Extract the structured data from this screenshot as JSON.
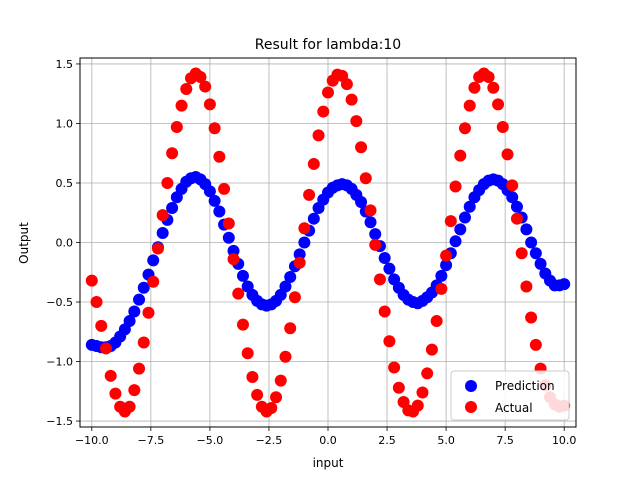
{
  "chart_data": {
    "type": "scatter",
    "title": "Result for lambda:10",
    "xlabel": "input",
    "ylabel": "Output",
    "xlim": [
      -10.5,
      10.5
    ],
    "ylim": [
      -1.55,
      1.55
    ],
    "grid": true,
    "legend_position": "lower right",
    "x_ticks": [
      -10,
      -7.5,
      -5,
      -2.5,
      0,
      2.5,
      5,
      7.5,
      10
    ],
    "x_tick_labels": [
      "−10.0",
      "−7.5",
      "−5.0",
      "−2.5",
      "0.0",
      "2.5",
      "5.0",
      "7.5",
      "10.0"
    ],
    "y_ticks": [
      -1.5,
      -1.0,
      -0.5,
      0.0,
      0.5,
      1.0,
      1.5
    ],
    "y_tick_labels": [
      "−1.5",
      "−1.0",
      "−0.5",
      "0.0",
      "0.5",
      "1.0",
      "1.5"
    ],
    "series": [
      {
        "name": "Prediction",
        "color": "#0000ff",
        "x": [
          -10.0,
          -9.8,
          -9.6,
          -9.4,
          -9.2,
          -9.0,
          -8.8,
          -8.6,
          -8.4,
          -8.2,
          -8.0,
          -7.8,
          -7.6,
          -7.4,
          -7.2,
          -7.0,
          -6.8,
          -6.6,
          -6.4,
          -6.2,
          -6.0,
          -5.8,
          -5.6,
          -5.4,
          -5.2,
          -5.0,
          -4.8,
          -4.6,
          -4.4,
          -4.2,
          -4.0,
          -3.8,
          -3.6,
          -3.4,
          -3.2,
          -3.0,
          -2.8,
          -2.6,
          -2.4,
          -2.2,
          -2.0,
          -1.8,
          -1.6,
          -1.4,
          -1.2,
          -1.0,
          -0.8,
          -0.6,
          -0.4,
          -0.2,
          0.0,
          0.2,
          0.4,
          0.6,
          0.8,
          1.0,
          1.2,
          1.4,
          1.6,
          1.8,
          2.0,
          2.2,
          2.4,
          2.6,
          2.8,
          3.0,
          3.2,
          3.4,
          3.6,
          3.8,
          4.0,
          4.2,
          4.4,
          4.6,
          4.8,
          5.0,
          5.2,
          5.4,
          5.6,
          5.8,
          6.0,
          6.2,
          6.4,
          6.6,
          6.8,
          7.0,
          7.2,
          7.4,
          7.6,
          7.8,
          8.0,
          8.2,
          8.4,
          8.6,
          8.8,
          9.0,
          9.2,
          9.4,
          9.6,
          9.8,
          10.0
        ],
        "y": [
          -0.86,
          -0.87,
          -0.88,
          -0.88,
          -0.87,
          -0.84,
          -0.79,
          -0.73,
          -0.66,
          -0.58,
          -0.48,
          -0.38,
          -0.27,
          -0.15,
          -0.04,
          0.08,
          0.19,
          0.29,
          0.38,
          0.45,
          0.51,
          0.54,
          0.55,
          0.53,
          0.49,
          0.43,
          0.35,
          0.26,
          0.15,
          0.04,
          -0.07,
          -0.18,
          -0.28,
          -0.37,
          -0.44,
          -0.49,
          -0.52,
          -0.53,
          -0.52,
          -0.49,
          -0.44,
          -0.37,
          -0.29,
          -0.2,
          -0.1,
          0.0,
          0.1,
          0.2,
          0.29,
          0.36,
          0.42,
          0.46,
          0.48,
          0.49,
          0.48,
          0.45,
          0.4,
          0.34,
          0.26,
          0.17,
          0.07,
          -0.03,
          -0.13,
          -0.22,
          -0.31,
          -0.38,
          -0.44,
          -0.48,
          -0.5,
          -0.51,
          -0.49,
          -0.46,
          -0.42,
          -0.36,
          -0.28,
          -0.19,
          -0.09,
          0.01,
          0.11,
          0.21,
          0.3,
          0.38,
          0.44,
          0.49,
          0.52,
          0.53,
          0.52,
          0.49,
          0.44,
          0.38,
          0.3,
          0.21,
          0.11,
          0.0,
          -0.09,
          -0.18,
          -0.26,
          -0.32,
          -0.36,
          -0.36,
          -0.35
        ]
      },
      {
        "name": "Actual",
        "color": "#ff0000",
        "x": [
          -10.0,
          -9.8,
          -9.6,
          -9.4,
          -9.2,
          -9.0,
          -8.8,
          -8.6,
          -8.4,
          -8.2,
          -8.0,
          -7.8,
          -7.6,
          -7.4,
          -7.2,
          -7.0,
          -6.8,
          -6.6,
          -6.4,
          -6.2,
          -6.0,
          -5.8,
          -5.6,
          -5.4,
          -5.2,
          -5.0,
          -4.8,
          -4.6,
          -4.4,
          -4.2,
          -4.0,
          -3.8,
          -3.6,
          -3.4,
          -3.2,
          -3.0,
          -2.8,
          -2.6,
          -2.4,
          -2.2,
          -2.0,
          -1.8,
          -1.6,
          -1.4,
          -1.2,
          -1.0,
          -0.8,
          -0.6,
          -0.4,
          -0.2,
          0.0,
          0.2,
          0.4,
          0.6,
          0.8,
          1.0,
          1.2,
          1.4,
          1.6,
          1.8,
          2.0,
          2.2,
          2.4,
          2.6,
          2.8,
          3.0,
          3.2,
          3.4,
          3.6,
          3.8,
          4.0,
          4.2,
          4.4,
          4.6,
          4.8,
          5.0,
          5.2,
          5.4,
          5.6,
          5.8,
          6.0,
          6.2,
          6.4,
          6.6,
          6.8,
          7.0,
          7.2,
          7.4,
          7.6,
          7.8,
          8.0,
          8.2,
          8.4,
          8.6,
          8.8,
          9.0,
          9.2,
          9.4,
          9.6,
          9.8,
          10.0
        ],
        "y": [
          -0.32,
          -0.5,
          -0.7,
          -0.89,
          -1.12,
          -1.27,
          -1.38,
          -1.42,
          -1.38,
          -1.24,
          -1.06,
          -0.84,
          -0.59,
          -0.33,
          -0.05,
          0.23,
          0.5,
          0.75,
          0.97,
          1.15,
          1.29,
          1.38,
          1.42,
          1.39,
          1.31,
          1.16,
          0.96,
          0.72,
          0.45,
          0.16,
          -0.14,
          -0.43,
          -0.69,
          -0.93,
          -1.13,
          -1.28,
          -1.38,
          -1.42,
          -1.39,
          -1.3,
          -1.16,
          -0.96,
          -0.72,
          -0.46,
          -0.17,
          0.12,
          0.4,
          0.66,
          0.9,
          1.1,
          1.26,
          1.36,
          1.41,
          1.4,
          1.33,
          1.2,
          1.02,
          0.8,
          0.54,
          0.27,
          -0.02,
          -0.31,
          -0.58,
          -0.83,
          -1.05,
          -1.22,
          -1.34,
          -1.41,
          -1.42,
          -1.37,
          -1.26,
          -1.1,
          -0.9,
          -0.66,
          -0.39,
          -0.11,
          0.18,
          0.47,
          0.73,
          0.96,
          1.15,
          1.3,
          1.39,
          1.42,
          1.39,
          1.3,
          1.16,
          0.97,
          0.74,
          0.48,
          0.2,
          -0.09,
          -0.37,
          -0.63,
          -0.86,
          -1.06,
          -1.2,
          -1.3,
          -1.36,
          -1.38,
          -1.37
        ]
      }
    ]
  }
}
